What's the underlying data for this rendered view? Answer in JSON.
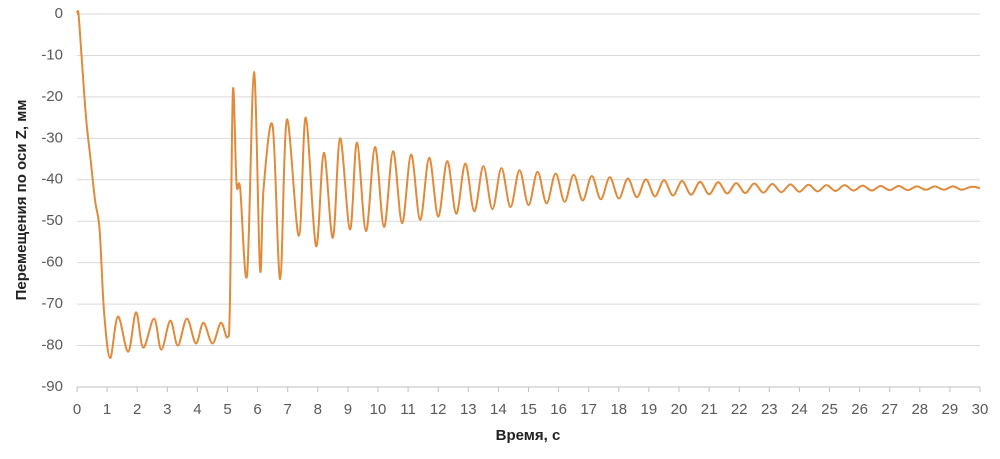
{
  "chart_data": {
    "type": "line",
    "x_label": "Время, с",
    "y_label": "Перемещения по оси Z, мм",
    "xlim": [
      0,
      30
    ],
    "xticks": [
      0,
      1,
      2,
      3,
      4,
      5,
      6,
      7,
      8,
      9,
      10,
      11,
      12,
      13,
      14,
      15,
      16,
      17,
      18,
      19,
      20,
      21,
      22,
      23,
      24,
      25,
      26,
      27,
      28,
      29,
      30
    ],
    "ylim": [
      -90,
      0
    ],
    "yticks": [
      0,
      -10,
      -20,
      -30,
      -40,
      -50,
      -60,
      -70,
      -80,
      -90
    ],
    "grid": true,
    "series": [
      {
        "color": "#e08a3a",
        "x": [
          0,
          0.05,
          0.15,
          0.3,
          0.45,
          0.6,
          0.75,
          0.9,
          1.1,
          1.36,
          1.7,
          1.96,
          2.2,
          2.56,
          2.8,
          3.1,
          3.35,
          3.65,
          3.95,
          4.2,
          4.5,
          4.78,
          5.0,
          5.08,
          5.18,
          5.3,
          5.42,
          5.65,
          5.88,
          6.08,
          6.2,
          6.5,
          6.75,
          6.97,
          7.37,
          7.6,
          7.94,
          8.2,
          8.5,
          8.74,
          9.07,
          9.3,
          9.6,
          9.9,
          10.2,
          10.5,
          10.8,
          11.1,
          11.4,
          11.7,
          12.0,
          12.3,
          12.6,
          12.9,
          13.2,
          13.5,
          13.8,
          14.1,
          14.4,
          14.7,
          15.0,
          15.3,
          15.6,
          15.9,
          16.2,
          16.5,
          16.8,
          17.1,
          17.4,
          17.7,
          18.0,
          18.3,
          18.6,
          18.9,
          19.2,
          19.5,
          19.8,
          20.1,
          20.4,
          20.7,
          21.0,
          21.3,
          21.6,
          21.9,
          22.2,
          22.5,
          22.8,
          23.1,
          23.4,
          23.7,
          24.0,
          24.3,
          24.6,
          24.9,
          25.2,
          25.5,
          25.8,
          26.1,
          26.4,
          26.7,
          27.0,
          27.3,
          27.6,
          27.9,
          28.2,
          28.5,
          28.8,
          29.1,
          29.4,
          29.7,
          30.0
        ],
        "values": [
          0,
          0,
          -10,
          -25,
          -35,
          -45,
          -52,
          -72,
          -83,
          -73,
          -81.5,
          -72,
          -80.5,
          -73.5,
          -81,
          -74,
          -80,
          -73.5,
          -79.5,
          -74.5,
          -79.5,
          -74.5,
          -78,
          -70,
          -18.5,
          -41,
          -42,
          -63,
          -14,
          -61.5,
          -42,
          -27,
          -64,
          -25.5,
          -53.5,
          -25,
          -56,
          -33.5,
          -54,
          -30,
          -52,
          -31,
          -52.4,
          -32.1,
          -51.4,
          -33.1,
          -50.5,
          -33.9,
          -49.7,
          -34.7,
          -48.9,
          -35.5,
          -48.2,
          -36.1,
          -47.6,
          -36.7,
          -47.1,
          -37.2,
          -46.6,
          -37.7,
          -46.1,
          -38.1,
          -45.7,
          -38.5,
          -45.3,
          -38.8,
          -45,
          -39.1,
          -44.7,
          -39.4,
          -44.5,
          -39.7,
          -44.2,
          -39.9,
          -44,
          -40.1,
          -43.8,
          -40.3,
          -43.6,
          -40.5,
          -43.5,
          -40.6,
          -43.3,
          -40.8,
          -43.2,
          -40.9,
          -43.1,
          -41,
          -43,
          -41.1,
          -42.9,
          -41.2,
          -42.8,
          -41.3,
          -42.7,
          -41.3,
          -42.6,
          -41.4,
          -42.6,
          -41.5,
          -42.5,
          -41.5,
          -42.5,
          -41.6,
          -42.4,
          -41.6,
          -42.4,
          -41.6,
          -42.4,
          -41.7,
          -42
        ]
      }
    ]
  }
}
